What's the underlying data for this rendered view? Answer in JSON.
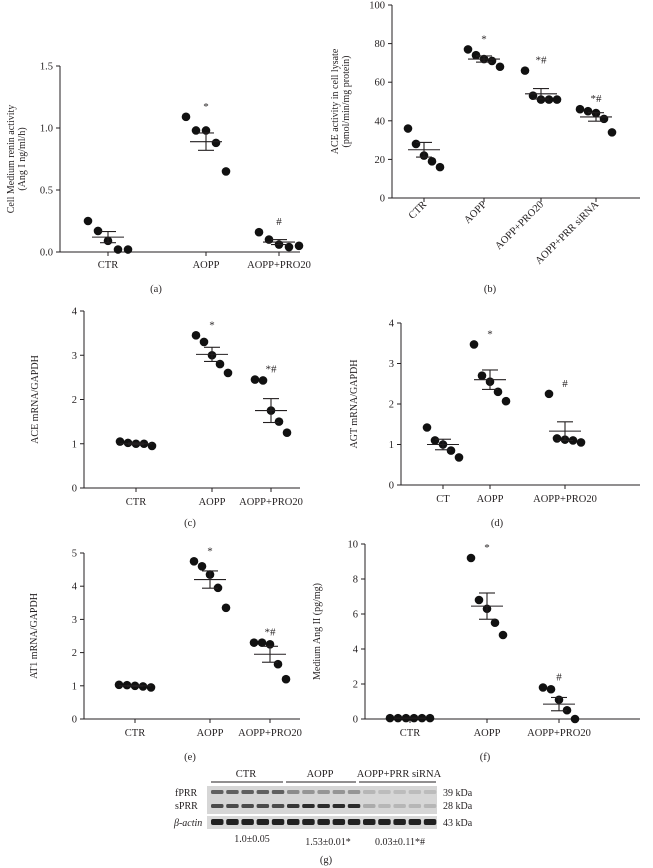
{
  "chart_data": [
    {
      "id": "a",
      "type": "scatter",
      "panel_label": "(a)",
      "ylabel_lines": [
        "Cell Medium renin activity",
        "(Ang I ng/ml/h)"
      ],
      "ylim": [
        0,
        1.5
      ],
      "yticks": [
        0.0,
        0.5,
        1.0,
        1.5
      ],
      "ytick_labels": [
        "0.0",
        "0.5",
        "1.0",
        "1.5"
      ],
      "categories": [
        "CTR",
        "AOPP",
        "AOPP+PRO20"
      ],
      "category_labels_rotated": false,
      "points": [
        [
          0.25,
          0.17,
          0.09,
          0.02,
          0.02
        ],
        [
          1.09,
          0.98,
          0.98,
          0.88,
          0.65
        ],
        [
          0.16,
          0.1,
          0.06,
          0.04,
          0.05
        ]
      ],
      "means": [
        0.12,
        0.89,
        0.08
      ],
      "sems": [
        0.045,
        0.07,
        0.02
      ],
      "annotations": [
        "",
        "*",
        "#"
      ]
    },
    {
      "id": "b",
      "type": "scatter",
      "panel_label": "(b)",
      "ylabel_lines": [
        "ACE activity in cell lysate",
        "(pmol/min/mg protein)"
      ],
      "ylim": [
        0,
        100
      ],
      "yticks": [
        0,
        20,
        40,
        60,
        80,
        100
      ],
      "ytick_labels": [
        "0",
        "20",
        "40",
        "60",
        "80",
        "100"
      ],
      "categories": [
        "CTR",
        "AOPP",
        "AOPP+PRO20",
        "AOPP+PRR siRNA"
      ],
      "category_labels_rotated": true,
      "points": [
        [
          36,
          28,
          22,
          19,
          16
        ],
        [
          77,
          74,
          72,
          71,
          68
        ],
        [
          66,
          53,
          51,
          51,
          51
        ],
        [
          46,
          45,
          44,
          41,
          34
        ]
      ],
      "means": [
        25,
        72,
        54,
        42
      ],
      "sems": [
        3.8,
        1.6,
        2.7,
        2.2
      ],
      "annotations": [
        "",
        "*",
        "*#",
        "*#"
      ]
    },
    {
      "id": "c",
      "type": "scatter",
      "panel_label": "(c)",
      "ylabel_lines": [
        "ACE mRNA/GAPDH"
      ],
      "ylim": [
        0,
        4
      ],
      "yticks": [
        0,
        1,
        2,
        3,
        4
      ],
      "ytick_labels": [
        "0",
        "1",
        "2",
        "3",
        "4"
      ],
      "categories": [
        "CTR",
        "AOPP",
        "AOPP+PRO20"
      ],
      "category_labels_rotated": false,
      "points": [
        [
          1.05,
          1.02,
          1.0,
          1.0,
          0.95
        ],
        [
          3.45,
          3.3,
          3.0,
          2.8,
          2.6
        ],
        [
          2.45,
          2.43,
          1.75,
          1.5,
          1.25
        ]
      ],
      "means": [
        1.0,
        3.02,
        1.75
      ],
      "sems": [
        0.02,
        0.16,
        0.27
      ],
      "annotations": [
        "",
        "*",
        "*#"
      ]
    },
    {
      "id": "d",
      "type": "scatter",
      "panel_label": "(d)",
      "ylabel_lines": [
        "AGT mRNA/GAPDH"
      ],
      "ylim": [
        0,
        4
      ],
      "yticks": [
        0,
        1,
        2,
        3,
        4
      ],
      "ytick_labels": [
        "0",
        "1",
        "2",
        "3",
        "4"
      ],
      "categories": [
        "CT",
        "AOPP",
        "AOPP+PRO20"
      ],
      "category_labels_rotated": false,
      "points": [
        [
          1.42,
          1.1,
          1.0,
          0.85,
          0.68
        ],
        [
          3.47,
          2.7,
          2.55,
          2.3,
          2.07
        ],
        [
          2.25,
          1.15,
          1.12,
          1.1,
          1.05
        ]
      ],
      "means": [
        1.0,
        2.6,
        1.33
      ],
      "sems": [
        0.13,
        0.24,
        0.23
      ],
      "annotations": [
        "",
        "*",
        "#"
      ]
    },
    {
      "id": "e",
      "type": "scatter",
      "panel_label": "(e)",
      "ylabel_lines": [
        "AT1 mRNA/GAPDH"
      ],
      "ylim": [
        0,
        5
      ],
      "yticks": [
        0,
        1,
        2,
        3,
        4,
        5
      ],
      "ytick_labels": [
        "0",
        "1",
        "2",
        "3",
        "4",
        "5"
      ],
      "categories": [
        "CTR",
        "AOPP",
        "AOPP+PRO20"
      ],
      "category_labels_rotated": false,
      "points": [
        [
          1.03,
          1.02,
          1.0,
          0.98,
          0.95
        ],
        [
          4.75,
          4.6,
          4.35,
          3.95,
          3.35
        ],
        [
          2.3,
          2.3,
          2.25,
          1.65,
          1.2
        ]
      ],
      "means": [
        1.0,
        4.2,
        1.95
      ],
      "sems": [
        0.015,
        0.26,
        0.24
      ],
      "annotations": [
        "",
        "*",
        "*#"
      ]
    },
    {
      "id": "f",
      "type": "scatter",
      "panel_label": "(f)",
      "ylabel_lines": [
        "Medium Ang II (pg/mg)"
      ],
      "ylim": [
        0,
        10
      ],
      "yticks": [
        0,
        2,
        4,
        6,
        8,
        10
      ],
      "ytick_labels": [
        "0",
        "2",
        "4",
        "6",
        "8",
        "10"
      ],
      "categories": [
        "CTR",
        "AOPP",
        "AOPP+PRO20"
      ],
      "category_labels_rotated": false,
      "points": [
        [
          0.05,
          0.05,
          0.05,
          0.05,
          0.05,
          0.05
        ],
        [
          9.2,
          6.8,
          6.3,
          5.5,
          4.8
        ],
        [
          1.8,
          1.7,
          1.1,
          0.5,
          0.0
        ]
      ],
      "means": [
        0.05,
        6.45,
        0.85
      ],
      "sems": [
        0.0,
        0.75,
        0.38
      ],
      "annotations": [
        "",
        "*",
        "#"
      ]
    }
  ],
  "blot": {
    "panel_label": "(g)",
    "groups": [
      "CTR",
      "AOPP",
      "AOPP+PRR siRNA"
    ],
    "rows": [
      {
        "label": "fPRR",
        "size": "39 kDa"
      },
      {
        "label": "sPRR",
        "size": "28 kDa"
      },
      {
        "label": "β-actin",
        "size": "43 kDa"
      }
    ],
    "quantification": [
      "1.0±0.05",
      "1.53±0.01*",
      "0.03±0.11*#"
    ]
  }
}
